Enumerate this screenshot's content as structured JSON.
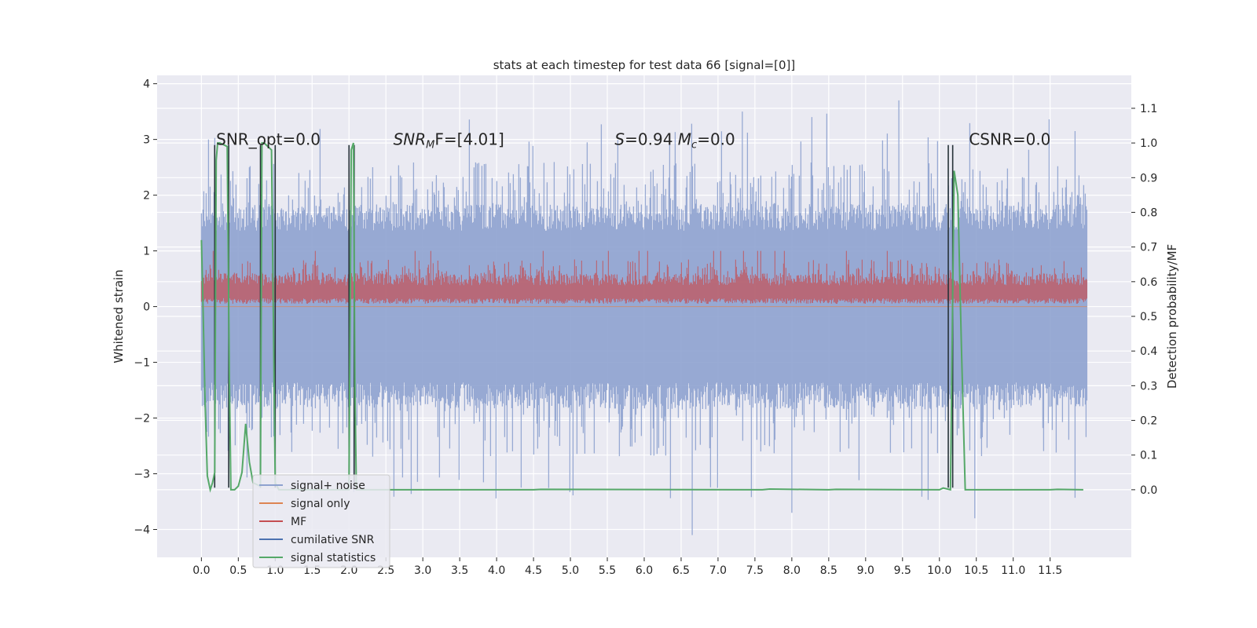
{
  "chart_data": {
    "type": "line",
    "title": "stats at each timestep for test data 66 [signal=[0]]",
    "xlabel": "",
    "ylabel": "Whitened strain",
    "y2label": "Detection probability/MF",
    "xlim": [
      -0.6,
      12.6
    ],
    "ylim": [
      -4.5,
      4.15
    ],
    "y2lim": [
      -0.195,
      1.195
    ],
    "x_ticks": [
      "0.0",
      "0.5",
      "1.0",
      "1.5",
      "2.0",
      "2.5",
      "3.0",
      "3.5",
      "4.0",
      "4.5",
      "5.0",
      "5.5",
      "6.0",
      "6.5",
      "7.0",
      "7.5",
      "8.0",
      "8.5",
      "9.0",
      "9.5",
      "10.0",
      "10.5",
      "11.0",
      "11.5"
    ],
    "y_ticks": [
      "4",
      "3",
      "2",
      "1",
      "0",
      "−1",
      "−2",
      "−3",
      "−4"
    ],
    "y2_ticks": [
      "1.1",
      "1.0",
      "0.9",
      "0.8",
      "0.7",
      "0.6",
      "0.5",
      "0.4",
      "0.3",
      "0.2",
      "0.1",
      "0.0"
    ],
    "grid": true,
    "legend_position": "lower-left",
    "series": [
      {
        "name": "signal+ noise",
        "color": "#8ea2cf",
        "envelope": {
          "x_start": 0.0,
          "x_end": 12.0,
          "typical_abs": 1.6,
          "peak_max": 3.7,
          "peak_min": -4.1
        }
      },
      {
        "name": "signal only",
        "color": "#dd8452",
        "values_note": "",
        "y": 0.0
      },
      {
        "name": "MF",
        "color": "#c44e52",
        "envelope": {
          "x_start": 0.0,
          "x_end": 12.0,
          "low": 0.05,
          "high": 0.6,
          "peak_max": 1.0
        }
      },
      {
        "name": "cumilative SNR",
        "color": "#4c72b0"
      },
      {
        "name": "signal statistics",
        "color": "#55a868",
        "x": [
          0.0,
          0.02,
          0.05,
          0.08,
          0.12,
          0.15,
          0.18,
          0.2,
          0.22,
          0.25,
          0.35,
          0.38,
          0.4,
          0.45,
          0.5,
          0.55,
          0.6,
          0.65,
          0.7,
          0.8,
          0.82,
          0.85,
          0.95,
          1.0,
          1.05,
          1.1,
          1.15,
          2.0,
          2.03,
          2.06,
          2.08,
          2.1,
          2.15,
          2.2,
          4.5,
          4.6,
          7.6,
          7.7,
          8.5,
          8.6,
          10.0,
          10.05,
          10.15,
          10.2,
          10.25,
          10.3,
          10.35,
          10.5,
          11.5,
          11.6,
          11.95
        ],
        "y": [
          0.72,
          0.55,
          0.25,
          0.04,
          0.0,
          0.02,
          0.05,
          0.95,
          1.0,
          1.0,
          0.99,
          0.3,
          0.0,
          0.0,
          0.01,
          0.05,
          0.19,
          0.08,
          0.02,
          0.01,
          1.0,
          1.0,
          0.98,
          0.02,
          0.0,
          0.0,
          0.0,
          0.0,
          0.98,
          1.0,
          0.3,
          0.0,
          0.0,
          0.0,
          0.0,
          0.001,
          0.0,
          0.002,
          0.0,
          0.001,
          0.0,
          0.005,
          0.0,
          0.92,
          0.85,
          0.4,
          0.0,
          0.0,
          0.0,
          0.001,
          0.0
        ]
      }
    ],
    "vlines": [
      0.18,
      0.37,
      0.8,
      1.0,
      2.0,
      2.07,
      10.12,
      10.18
    ],
    "annotations": [
      {
        "text": "SNR_opt=0.0",
        "x": 0.2,
        "y": 3.0
      },
      {
        "text_parts": [
          "SNR",
          "M",
          "F=[4.01]"
        ],
        "x": 2.6,
        "y": 3.0
      },
      {
        "text_parts": [
          "S",
          "=0.94   ",
          "M",
          "c",
          "=0.0"
        ],
        "x": 5.6,
        "y": 3.0
      },
      {
        "text": "CSNR=0.0",
        "x": 10.4,
        "y": 3.0
      }
    ]
  }
}
